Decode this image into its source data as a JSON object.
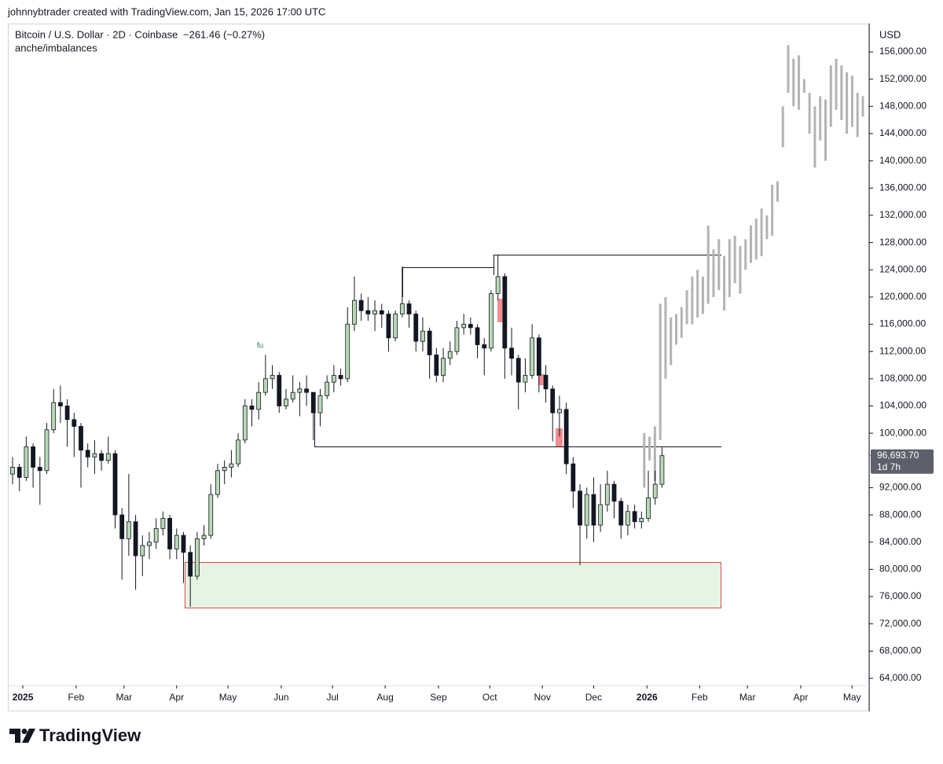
{
  "header": {
    "attribution": "johnnybtrader created with TradingView.com, Jan 15, 2026 17:00 UTC",
    "symbol": "Bitcoin / U.S. Dollar · 2D · Coinbase",
    "change": "−261.46 (−0.27%)",
    "indicator": "anche/imbalances"
  },
  "chart_data": {
    "type": "candlestick",
    "currency": "USD",
    "annotation": "fu",
    "colors": {
      "up": "#b9d9b6",
      "down": "#131722",
      "projection": "#b3b3b3"
    },
    "xlim": [
      -0.69,
      125.3
    ],
    "xticks": [
      {
        "value": 1.5,
        "label": "2025"
      },
      {
        "value": 9.3,
        "label": "Feb"
      },
      {
        "value": 16.3,
        "label": "Mar"
      },
      {
        "value": 24.0,
        "label": "Apr"
      },
      {
        "value": 31.5,
        "label": "May"
      },
      {
        "value": 39.3,
        "label": "Jun"
      },
      {
        "value": 46.8,
        "label": "Jul"
      },
      {
        "value": 54.5,
        "label": "Aug"
      },
      {
        "value": 62.3,
        "label": "Sep"
      },
      {
        "value": 69.8,
        "label": "Oct"
      },
      {
        "value": 77.5,
        "label": "Nov"
      },
      {
        "value": 85.0,
        "label": "Dec"
      },
      {
        "value": 92.8,
        "label": "2026"
      },
      {
        "value": 100.5,
        "label": "Feb"
      },
      {
        "value": 107.5,
        "label": "Mar"
      },
      {
        "value": 115.3,
        "label": "Apr"
      },
      {
        "value": 122.8,
        "label": "May"
      }
    ],
    "ylim": [
      62960,
      160160
    ],
    "yticks": [
      {
        "value": 64000,
        "label": "64,000.00"
      },
      {
        "value": 68000,
        "label": "68,000.00"
      },
      {
        "value": 72000,
        "label": "72,000.00"
      },
      {
        "value": 76000,
        "label": "76,000.00"
      },
      {
        "value": 80000,
        "label": "80,000.00"
      },
      {
        "value": 84000,
        "label": "84,000.00"
      },
      {
        "value": 88000,
        "label": "88,000.00"
      },
      {
        "value": 92000,
        "label": "92,000.00"
      },
      {
        "value": 100000,
        "label": "100,000.00"
      },
      {
        "value": 104000,
        "label": "104,000.00"
      },
      {
        "value": 108000,
        "label": "108,000.00"
      },
      {
        "value": 112000,
        "label": "112,000.00"
      },
      {
        "value": 116000,
        "label": "116,000.00"
      },
      {
        "value": 120000,
        "label": "120,000.00"
      },
      {
        "value": 124000,
        "label": "124,000.00"
      },
      {
        "value": 128000,
        "label": "128,000.00"
      },
      {
        "value": 132000,
        "label": "132,000.00"
      },
      {
        "value": 136000,
        "label": "136,000.00"
      },
      {
        "value": 140000,
        "label": "140,000.00"
      },
      {
        "value": 144000,
        "label": "144,000.00"
      },
      {
        "value": 148000,
        "label": "148,000.00"
      },
      {
        "value": 152000,
        "label": "152,000.00"
      },
      {
        "value": 156000,
        "label": "156,000.00"
      }
    ],
    "candles": [
      [
        94000,
        96500,
        92500,
        95000
      ],
      [
        95000,
        95500,
        91500,
        93500
      ],
      [
        93500,
        99500,
        93000,
        98000
      ],
      [
        98000,
        98500,
        92000,
        95000
      ],
      [
        95000,
        96500,
        89500,
        94500
      ],
      [
        94500,
        101500,
        94000,
        100500
      ],
      [
        100500,
        106500,
        100000,
        104500
      ],
      [
        104500,
        107000,
        101500,
        104000
      ],
      [
        104000,
        105000,
        98000,
        102000
      ],
      [
        102000,
        103000,
        96500,
        101000
      ],
      [
        101000,
        101500,
        92000,
        97500
      ],
      [
        97500,
        98500,
        95000,
        96500
      ],
      [
        96500,
        99000,
        94000,
        97000
      ],
      [
        97000,
        97500,
        94500,
        96000
      ],
      [
        96000,
        99500,
        95500,
        97000
      ],
      [
        97000,
        97500,
        86000,
        88000
      ],
      [
        88000,
        89000,
        78500,
        84500
      ],
      [
        84500,
        94000,
        82000,
        87000
      ],
      [
        87000,
        88000,
        77000,
        82000
      ],
      [
        82000,
        85000,
        79000,
        83500
      ],
      [
        83500,
        85500,
        81500,
        84000
      ],
      [
        84000,
        87500,
        83000,
        86000
      ],
      [
        86000,
        88500,
        85000,
        87500
      ],
      [
        87500,
        88000,
        81500,
        83000
      ],
      [
        83000,
        86000,
        81500,
        85000
      ],
      [
        85000,
        85500,
        78000,
        82500
      ],
      [
        82500,
        83500,
        74500,
        79000
      ],
      [
        79000,
        85500,
        78500,
        84500
      ],
      [
        84500,
        86500,
        83500,
        85000
      ],
      [
        85000,
        92500,
        84500,
        91000
      ],
      [
        91000,
        95500,
        90500,
        94500
      ],
      [
        94500,
        96000,
        92500,
        95000
      ],
      [
        95000,
        97500,
        93500,
        95500
      ],
      [
        95500,
        100000,
        95000,
        99000
      ],
      [
        99000,
        105000,
        98500,
        104000
      ],
      [
        104000,
        105000,
        101000,
        103500
      ],
      [
        103500,
        107500,
        102000,
        106000
      ],
      [
        106000,
        111500,
        105500,
        108000
      ],
      [
        108000,
        110000,
        106500,
        108500
      ],
      [
        108500,
        109000,
        103000,
        104000
      ],
      [
        104000,
        106500,
        103500,
        105000
      ],
      [
        105000,
        108500,
        104500,
        106000
      ],
      [
        106000,
        107500,
        102500,
        106500
      ],
      [
        106500,
        108500,
        104000,
        106000
      ],
      [
        106000,
        106000,
        99000,
        103000
      ],
      [
        103000,
        106500,
        101000,
        105500
      ],
      [
        105500,
        108500,
        105000,
        107500
      ],
      [
        107500,
        110000,
        106000,
        108500
      ],
      [
        108500,
        109500,
        107000,
        108000
      ],
      [
        108000,
        118500,
        107500,
        116000
      ],
      [
        116000,
        123000,
        115000,
        119500
      ],
      [
        119500,
        120500,
        116500,
        118000
      ],
      [
        118000,
        120000,
        116500,
        117500
      ],
      [
        117500,
        119500,
        115000,
        118000
      ],
      [
        118000,
        119000,
        115500,
        117500
      ],
      [
        117500,
        118000,
        112000,
        114000
      ],
      [
        114000,
        118000,
        113500,
        117500
      ],
      [
        117500,
        124500,
        117000,
        119000
      ],
      [
        119000,
        119500,
        115500,
        117500
      ],
      [
        117500,
        118000,
        112000,
        113500
      ],
      [
        113500,
        117000,
        112000,
        115000
      ],
      [
        115000,
        115500,
        108000,
        111500
      ],
      [
        111500,
        112500,
        107500,
        108500
      ],
      [
        108500,
        112500,
        107500,
        111000
      ],
      [
        111000,
        113500,
        110000,
        112000
      ],
      [
        112000,
        116500,
        111500,
        115500
      ],
      [
        115500,
        117500,
        114500,
        116000
      ],
      [
        116000,
        117000,
        114500,
        115500
      ],
      [
        115500,
        116000,
        111000,
        113000
      ],
      [
        113000,
        114000,
        108500,
        112500
      ],
      [
        112500,
        121000,
        112000,
        120500
      ],
      [
        120500,
        126200,
        119500,
        123000
      ],
      [
        123000,
        123500,
        108000,
        112500
      ],
      [
        112500,
        115500,
        108500,
        111000
      ],
      [
        111000,
        111500,
        103500,
        107500
      ],
      [
        107500,
        111000,
        106000,
        108500
      ],
      [
        108500,
        116000,
        108000,
        114000
      ],
      [
        114000,
        114500,
        106000,
        108500
      ],
      [
        108500,
        110000,
        104500,
        106500
      ],
      [
        106500,
        107000,
        98800,
        103000
      ],
      [
        103000,
        105500,
        99500,
        103500
      ],
      [
        103500,
        104500,
        94000,
        95500
      ],
      [
        95500,
        96500,
        89000,
        91500
      ],
      [
        91500,
        92500,
        80600,
        86500
      ],
      [
        86500,
        92000,
        84500,
        91000
      ],
      [
        91000,
        93500,
        84000,
        86500
      ],
      [
        86500,
        92500,
        85500,
        89500
      ],
      [
        89500,
        94500,
        88500,
        92500
      ],
      [
        92500,
        93000,
        87500,
        90000
      ],
      [
        90000,
        90500,
        84500,
        86500
      ],
      [
        86500,
        89500,
        85000,
        88500
      ],
      [
        88500,
        89500,
        86000,
        87000
      ],
      [
        87000,
        88500,
        86000,
        87500
      ],
      [
        87500,
        94500,
        87000,
        90500
      ],
      [
        90500,
        94500,
        89500,
        92500
      ],
      [
        92500,
        97900,
        92000,
        96700
      ]
    ],
    "projection": [
      [
        92000,
        100000
      ],
      [
        96000,
        99500
      ],
      [
        93000,
        101000
      ],
      [
        99000,
        119000
      ],
      [
        108000,
        120000
      ],
      [
        110000,
        117000
      ],
      [
        113000,
        117500
      ],
      [
        114000,
        118500
      ],
      [
        116000,
        121000
      ],
      [
        116000,
        123000
      ],
      [
        117000,
        124000
      ],
      [
        117500,
        123000
      ],
      [
        119000,
        130500
      ],
      [
        120000,
        127000
      ],
      [
        121000,
        128500
      ],
      [
        118000,
        126000
      ],
      [
        120000,
        128500
      ],
      [
        122000,
        129000
      ],
      [
        120500,
        127500
      ],
      [
        124000,
        128500
      ],
      [
        125000,
        130500
      ],
      [
        125500,
        131500
      ],
      [
        126000,
        133000
      ],
      [
        128500,
        132000
      ],
      [
        129000,
        136500
      ],
      [
        134000,
        137000
      ],
      [
        142000,
        148000
      ],
      [
        150000,
        157000
      ],
      [
        148000,
        155000
      ],
      [
        147500,
        155500
      ],
      [
        150000,
        152000
      ],
      [
        144000,
        150000
      ],
      [
        139000,
        148000
      ],
      [
        143000,
        149500
      ],
      [
        140000,
        149000
      ],
      [
        145000,
        154000
      ],
      [
        147500,
        155000
      ],
      [
        146000,
        154000
      ],
      [
        144000,
        153000
      ],
      [
        145000,
        152500
      ],
      [
        143500,
        150000
      ],
      [
        146500,
        149500
      ]
    ],
    "last_price": {
      "value": 96693.7,
      "label": "96,693.70"
    },
    "countdown": "1d 7h"
  },
  "footer": {
    "brand": "TradingView"
  }
}
